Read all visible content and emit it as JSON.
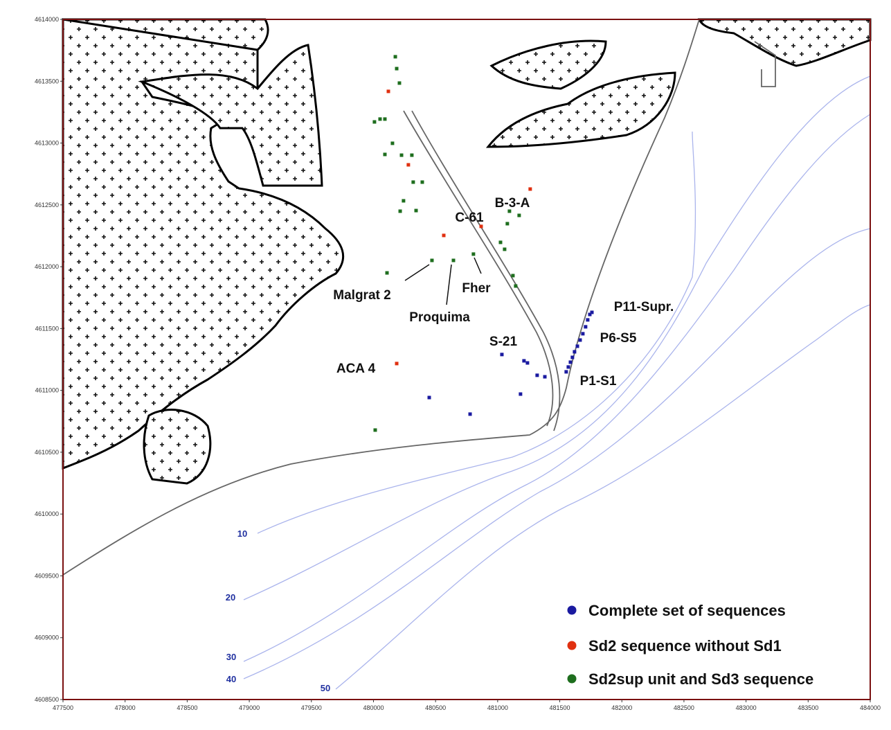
{
  "chart_data": {
    "type": "scatter",
    "xlim": [
      477500,
      484000
    ],
    "ylim": [
      4608500,
      4614000
    ],
    "xticks": [
      477500,
      478000,
      478500,
      479000,
      479500,
      480000,
      480500,
      481000,
      481500,
      482000,
      482500,
      483000,
      483500,
      484000
    ],
    "yticks": [
      4608500,
      4609000,
      4609500,
      4610000,
      4610500,
      4611000,
      4611500,
      4612000,
      4612500,
      4613000,
      4613500,
      4614000
    ],
    "series": [
      {
        "name": "Complete set of sequences",
        "color": "#1a1aa0",
        "x": [
          481034,
          481212,
          481240,
          481318,
          481380,
          481184,
          480449,
          480778,
          481552,
          481569,
          481586,
          481602,
          481619,
          481642,
          481664,
          481686,
          481708,
          481725,
          481742,
          481759
        ],
        "values": [
          4611290,
          4611239,
          4611222,
          4611122,
          4611110,
          4610970,
          4610942,
          4610808,
          4611150,
          4611189,
          4611228,
          4611267,
          4611312,
          4611357,
          4611407,
          4611458,
          4611514,
          4611570,
          4611614,
          4611631
        ]
      },
      {
        "name": "Sd2 sequence without Sd1",
        "color": "#e03010",
        "x": [
          480120,
          480281,
          481262,
          480867,
          480566,
          480187
        ],
        "values": [
          4613418,
          4612824,
          4612628,
          4612326,
          4612253,
          4611217
        ]
      },
      {
        "name": "Sd2sup unit and Sd3 sequence",
        "color": "#1e6e1e",
        "x": [
          480176,
          480187,
          480209,
          480008,
          480053,
          480092,
          480153,
          480092,
          480226,
          480309,
          480242,
          480215,
          480320,
          480393,
          480343,
          480109,
          480471,
          480644,
          480805,
          481023,
          481056,
          481078,
          481173,
          481095,
          481123,
          481145,
          480014
        ],
        "values": [
          4613698,
          4613602,
          4613485,
          4613171,
          4613194,
          4613194,
          4612998,
          4612908,
          4612902,
          4612902,
          4612533,
          4612449,
          4612684,
          4612684,
          4612454,
          4611950,
          4612051,
          4612051,
          4612102,
          4612197,
          4612141,
          4612348,
          4612415,
          4612449,
          4611928,
          4611844,
          4610679
        ]
      }
    ],
    "annotations": [
      "B-3-A",
      "C-61",
      "Malgrat 2",
      "Proquima",
      "Fher",
      "S-21",
      "ACA 4",
      "P11-Supr.",
      "P6-S5",
      "P1-S1"
    ],
    "contour_labels": [
      "10",
      "20",
      "30",
      "40",
      "50"
    ]
  }
}
